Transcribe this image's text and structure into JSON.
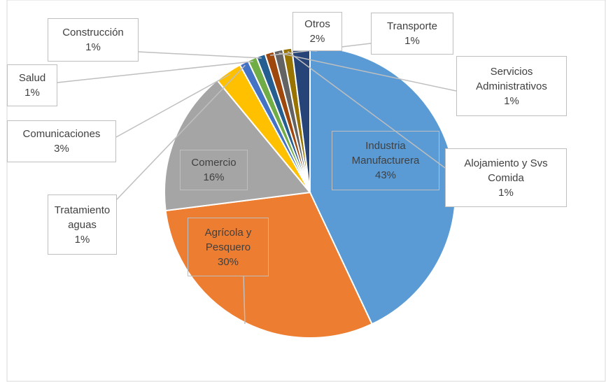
{
  "chart_data": {
    "type": "pie",
    "categories": [
      "Industria Manufacturera",
      "Agrícola y Pesquero",
      "Comercio",
      "Comunicaciones",
      "Tratamiento aguas",
      "Salud",
      "Construcción",
      "Transporte",
      "Servicios Administrativos",
      "Alojamiento y Svs Comida",
      "Otros"
    ],
    "values": [
      43,
      30,
      16,
      3,
      1,
      1,
      1,
      1,
      1,
      1,
      2
    ],
    "value_labels": [
      "43%",
      "30%",
      "16%",
      "3%",
      "1%",
      "1%",
      "1%",
      "1%",
      "1%",
      "1%",
      "2%"
    ],
    "colors": [
      "#5b9bd5",
      "#ed7d31",
      "#a5a5a5",
      "#ffc000",
      "#4472c4",
      "#70ad47",
      "#255e91",
      "#9e480e",
      "#636363",
      "#997300",
      "#264478"
    ]
  }
}
